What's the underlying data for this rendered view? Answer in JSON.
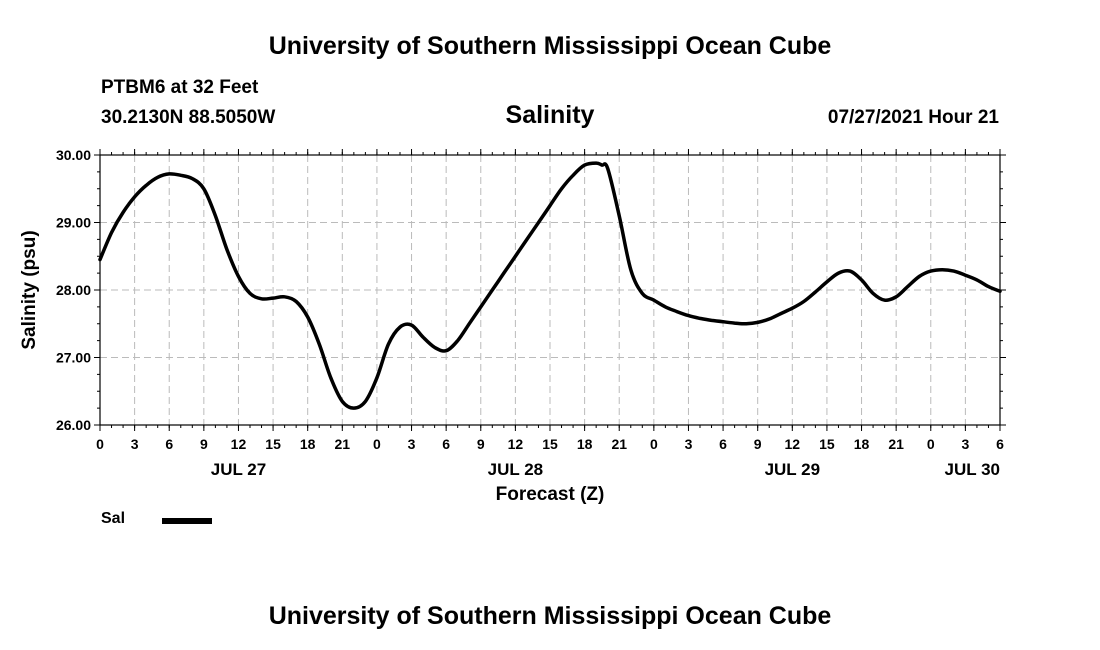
{
  "header": {
    "title": "University of Southern Mississippi Ocean Cube",
    "station": "PTBM6 at 32 Feet",
    "coords": "30.2130N  88.5050W",
    "timestamp": "07/27/2021 Hour 21"
  },
  "footer": {
    "title": "University of Southern Mississippi Ocean Cube"
  },
  "colors": {
    "line": "#000000",
    "grid": "#bbbbbb",
    "background": "#ffffff"
  },
  "chart_data": {
    "type": "line",
    "title": "Salinity",
    "xlabel": "Forecast (Z)",
    "ylabel": "Salinity (psu)",
    "ylim": [
      26.0,
      30.0
    ],
    "yticks": [
      "26.00",
      "27.00",
      "28.00",
      "29.00",
      "30.00"
    ],
    "xlim_hours": [
      0,
      78
    ],
    "xticks": [
      {
        "h": 0,
        "label": "0"
      },
      {
        "h": 3,
        "label": "3"
      },
      {
        "h": 6,
        "label": "6"
      },
      {
        "h": 9,
        "label": "9"
      },
      {
        "h": 12,
        "label": "12"
      },
      {
        "h": 15,
        "label": "15"
      },
      {
        "h": 18,
        "label": "18"
      },
      {
        "h": 21,
        "label": "21"
      },
      {
        "h": 24,
        "label": "0"
      },
      {
        "h": 27,
        "label": "3"
      },
      {
        "h": 30,
        "label": "6"
      },
      {
        "h": 33,
        "label": "9"
      },
      {
        "h": 36,
        "label": "12"
      },
      {
        "h": 39,
        "label": "15"
      },
      {
        "h": 42,
        "label": "18"
      },
      {
        "h": 45,
        "label": "21"
      },
      {
        "h": 48,
        "label": "0"
      },
      {
        "h": 51,
        "label": "3"
      },
      {
        "h": 54,
        "label": "6"
      },
      {
        "h": 57,
        "label": "9"
      },
      {
        "h": 60,
        "label": "12"
      },
      {
        "h": 63,
        "label": "15"
      },
      {
        "h": 66,
        "label": "18"
      },
      {
        "h": 69,
        "label": "21"
      },
      {
        "h": 72,
        "label": "0"
      },
      {
        "h": 75,
        "label": "3"
      },
      {
        "h": 78,
        "label": "6"
      }
    ],
    "date_labels": [
      {
        "h": 12,
        "label": "JUL 27"
      },
      {
        "h": 36,
        "label": "JUL 28"
      },
      {
        "h": 60,
        "label": "JUL 29"
      },
      {
        "h": 78,
        "label": "JUL 30"
      }
    ],
    "grid": true,
    "legend_position": "bottom-left",
    "series": [
      {
        "name": "Sal",
        "x": [
          0,
          1,
          2,
          3,
          4,
          5,
          6,
          7,
          8,
          9,
          10,
          11,
          12,
          13,
          14,
          15,
          16,
          17,
          18,
          19,
          20,
          21,
          22,
          23,
          24,
          25,
          26,
          27,
          28,
          29,
          30,
          31,
          32,
          33,
          34,
          35,
          36,
          37,
          38,
          39,
          40,
          41,
          42,
          43,
          43.5,
          44,
          45,
          46,
          47,
          48,
          49,
          50,
          51,
          52,
          53,
          54,
          55,
          56,
          57,
          58,
          59,
          60,
          61,
          62,
          63,
          64,
          65,
          66,
          67,
          68,
          69,
          70,
          71,
          72,
          73,
          74,
          75,
          76,
          77,
          78
        ],
        "y": [
          28.45,
          28.85,
          29.15,
          29.38,
          29.55,
          29.67,
          29.72,
          29.7,
          29.65,
          29.5,
          29.1,
          28.6,
          28.2,
          27.95,
          27.87,
          27.88,
          27.9,
          27.83,
          27.6,
          27.2,
          26.7,
          26.35,
          26.25,
          26.35,
          26.7,
          27.2,
          27.45,
          27.48,
          27.3,
          27.15,
          27.1,
          27.25,
          27.5,
          27.75,
          28.0,
          28.25,
          28.5,
          28.75,
          29.0,
          29.25,
          29.5,
          29.7,
          29.85,
          29.88,
          29.85,
          29.8,
          29.1,
          28.3,
          27.95,
          27.85,
          27.75,
          27.68,
          27.62,
          27.58,
          27.55,
          27.53,
          27.51,
          27.5,
          27.52,
          27.57,
          27.65,
          27.73,
          27.83,
          27.97,
          28.12,
          28.25,
          28.28,
          28.15,
          27.95,
          27.85,
          27.9,
          28.05,
          28.2,
          28.28,
          28.3,
          28.28,
          28.22,
          28.15,
          28.05,
          27.98
        ]
      }
    ]
  }
}
